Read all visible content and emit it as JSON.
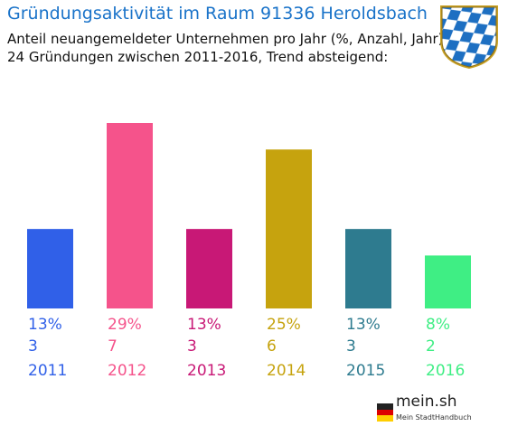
{
  "title": "Gründungsaktivität im Raum 91336 Heroldsbach",
  "subtitle1": "Anteil neuangemeldeter Unternehmen pro Jahr (%, Anzahl, Jahr)",
  "subtitle2": "24 Gründungen zwischen 2011-2016, Trend absteigend:",
  "brand": {
    "name": "mein.sh",
    "tagline": "Mein StadtHandbuch"
  },
  "icons": {
    "coat_of_arms": "bavaria-coat-of-arms-icon",
    "flag": "germany-flag-icon"
  },
  "chart_data": {
    "type": "bar",
    "categories": [
      "2011",
      "2012",
      "2013",
      "2014",
      "2015",
      "2016"
    ],
    "percent_labels": [
      "13%",
      "29%",
      "13%",
      "25%",
      "13%",
      "8%"
    ],
    "count_labels": [
      "3",
      "7",
      "3",
      "6",
      "3",
      "2"
    ],
    "values": [
      3,
      7,
      3,
      6,
      3,
      2
    ],
    "colors": [
      "#3060e8",
      "#f5538b",
      "#c81876",
      "#c6a30e",
      "#2e7b8f",
      "#3fee84"
    ],
    "ylim": [
      0,
      7
    ],
    "grid": false,
    "legend": "none"
  }
}
